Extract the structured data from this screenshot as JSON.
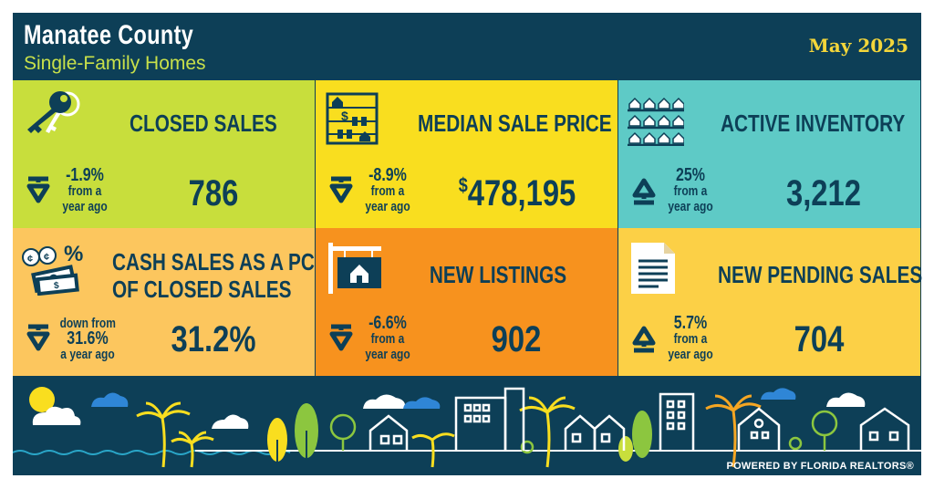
{
  "header": {
    "title": "Manatee County",
    "subtitle": "Single-Family Homes",
    "date": "May 2025"
  },
  "tiles": [
    {
      "title": "CLOSED SALES",
      "value": "786",
      "change_pct": "-1.9%",
      "change_text": "from a",
      "change_text2": "year ago",
      "direction": "down",
      "bg": "#c8de3c",
      "icon": "keys-icon"
    },
    {
      "title": "MEDIAN SALE PRICE",
      "value_prefix": "$",
      "value": "478,195",
      "change_pct": "-8.9%",
      "change_text": "from a",
      "change_text2": "year ago",
      "direction": "down",
      "bg": "#f9de1f",
      "icon": "abacus-icon"
    },
    {
      "title": "ACTIVE INVENTORY",
      "value": "3,212",
      "change_pct": "25%",
      "change_text": "from a",
      "change_text2": "year ago",
      "direction": "up",
      "bg": "#5ecac6",
      "icon": "houses-grid-icon"
    },
    {
      "title_line1": "CASH SALES AS A PCT.",
      "title_line2": "OF CLOSED SALES",
      "value": "31.2%",
      "change_pre": "down from",
      "change_pct": "31.6%",
      "change_text2": "a year ago",
      "direction": "down",
      "bg": "#fcc65e",
      "icon": "cash-percent-icon"
    },
    {
      "title": "NEW LISTINGS",
      "value": "902",
      "change_pct": "-6.6%",
      "change_text": "from a",
      "change_text2": "year ago",
      "direction": "down",
      "bg": "#f7921e",
      "icon": "for-sale-sign-icon"
    },
    {
      "title": "NEW PENDING SALES",
      "value": "704",
      "change_pct": "5.7%",
      "change_text": "from a",
      "change_text2": "year ago",
      "direction": "up",
      "bg": "#fcd046",
      "icon": "document-icon"
    }
  ],
  "footer": {
    "powered_by": "POWERED BY FLORIDA REALTORS®"
  },
  "colors": {
    "navy": "#0d3f57",
    "lime": "#c8de3c",
    "yellow": "#f9de1f",
    "teal": "#5ecac6",
    "peach": "#fcc65e",
    "orange": "#f7921e",
    "gold": "#fcd046"
  }
}
